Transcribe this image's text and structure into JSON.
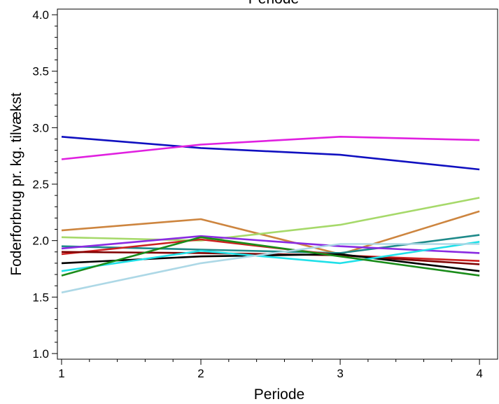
{
  "chart_data": {
    "type": "line",
    "title": "Periode",
    "xlabel": "Periode",
    "ylabel": "Foderforbrug pr. kg. tilvækst",
    "x": [
      1,
      2,
      3,
      4
    ],
    "xticks": [
      "1",
      "2",
      "3",
      "4"
    ],
    "yticks": [
      "1.0",
      "1.5",
      "2.0",
      "2.5",
      "3.0",
      "3.5",
      "4.0"
    ],
    "ylim": [
      0.95,
      4.05
    ],
    "xlim": [
      0.97,
      4.13
    ],
    "grid": false,
    "legend": "none",
    "series": [
      {
        "color": "#1010c0",
        "values": [
          2.92,
          2.82,
          2.76,
          2.63
        ]
      },
      {
        "color": "#e020e0",
        "values": [
          2.72,
          2.85,
          2.92,
          2.89
        ]
      },
      {
        "color": "#cd853f",
        "values": [
          2.09,
          2.19,
          1.88,
          2.26
        ]
      },
      {
        "color": "#a6d96a",
        "values": [
          2.03,
          2.0,
          2.14,
          2.38
        ]
      },
      {
        "color": "#1f8a8a",
        "values": [
          1.95,
          1.92,
          1.89,
          2.05
        ]
      },
      {
        "color": "#8a2be2",
        "values": [
          1.93,
          2.04,
          1.95,
          1.89
        ]
      },
      {
        "color": "#cc2020",
        "values": [
          1.88,
          2.01,
          1.87,
          1.82
        ]
      },
      {
        "color": "#800000",
        "values": [
          1.9,
          1.89,
          1.87,
          1.79
        ]
      },
      {
        "color": "#000000",
        "values": [
          1.8,
          1.86,
          1.88,
          1.73
        ]
      },
      {
        "color": "#20e0e8",
        "values": [
          1.73,
          1.91,
          1.8,
          1.99
        ]
      },
      {
        "color": "#1a8c1a",
        "values": [
          1.69,
          2.03,
          1.86,
          1.69
        ]
      },
      {
        "color": "#add8e6",
        "values": [
          1.54,
          1.8,
          1.97,
          1.97
        ]
      }
    ]
  }
}
